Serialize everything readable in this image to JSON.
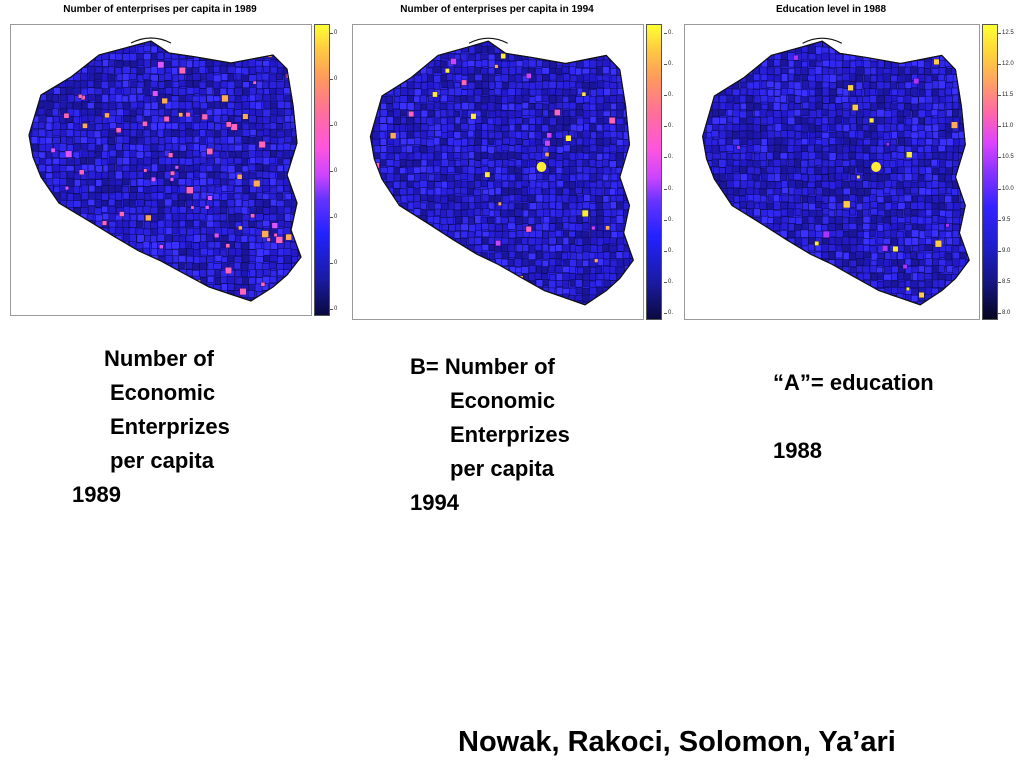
{
  "panels": [
    {
      "title": "Number of enterprises per capita in 1989",
      "legend_ticks": [
        "0",
        "0",
        "0",
        "0",
        "0",
        "0",
        "0"
      ]
    },
    {
      "title": "Number of enterprises per capita in 1994",
      "legend_ticks": [
        "0.",
        "0.",
        "0.",
        "0.",
        "0.",
        "0.",
        "0.",
        "0.",
        "0.",
        "0."
      ]
    },
    {
      "title": "Education level in 1988",
      "legend_ticks": [
        "12.5",
        "12.0",
        "11.5",
        "11.0",
        "10.5",
        "10.0",
        "9.5",
        "9.0",
        "8.5",
        "8.0"
      ]
    }
  ],
  "captions": {
    "c1": [
      "Number of",
      "Economic",
      "Enterprizes",
      "per capita",
      "1989"
    ],
    "c2": [
      "B= Number of",
      "Economic",
      "Enterprizes",
      "per capita",
      "1994"
    ],
    "c3": [
      "“A”= education",
      "",
      "1988"
    ]
  },
  "authors": "Nowak, Rakoci, Solomon, Ya’ari",
  "colors": {
    "map_fill": "#2a22e0",
    "map_border": "#0a0a50",
    "hot_yellow": "#ffee33",
    "hot_pink": "#ff66bb",
    "hot_orange": "#ffaa55"
  }
}
